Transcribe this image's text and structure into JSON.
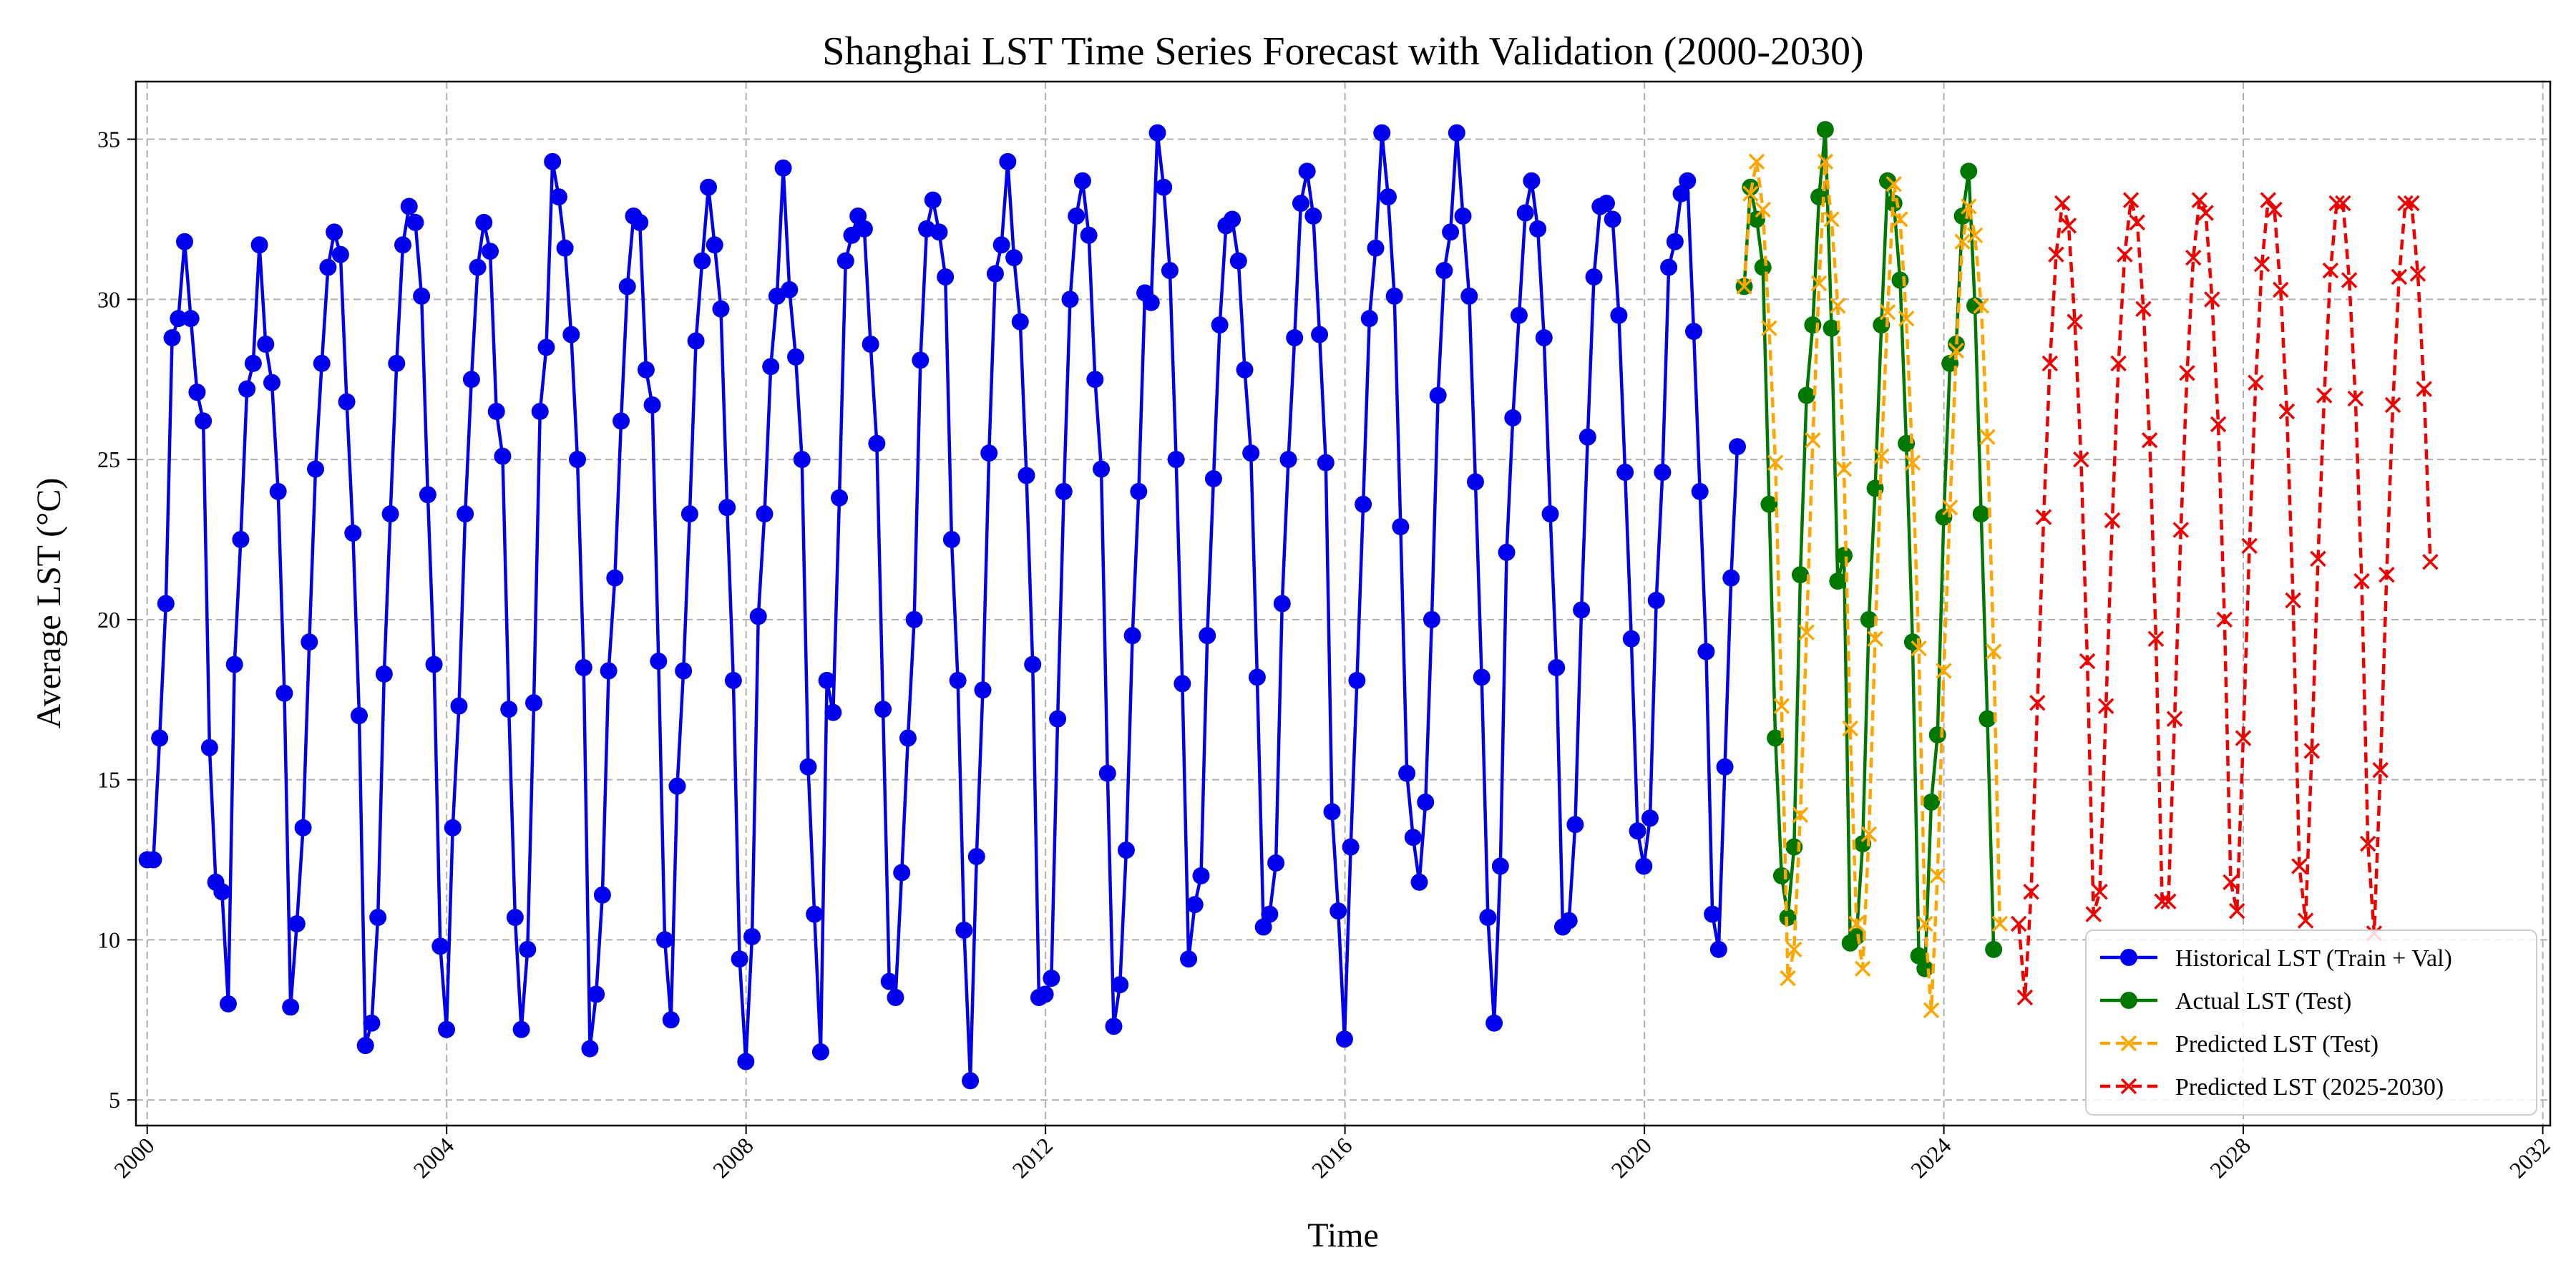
{
  "chart_data": {
    "type": "line",
    "title": "Shanghai LST Time Series Forecast with Validation (2000-2030)",
    "xlabel": "Time",
    "ylabel": "Average LST (°C)",
    "xlim": [
      1999.85,
      2032.1
    ],
    "ylim": [
      4.2,
      36.8
    ],
    "x_ticks": [
      2000,
      2004,
      2008,
      2012,
      2016,
      2020,
      2024,
      2028,
      2032
    ],
    "x_tick_labels": [
      "2000",
      "2004",
      "2008",
      "2012",
      "2016",
      "2020",
      "2024",
      "2028",
      "2032"
    ],
    "y_ticks": [
      5,
      10,
      15,
      20,
      25,
      30,
      35
    ],
    "y_tick_labels": [
      "5",
      "10",
      "15",
      "20",
      "25",
      "30",
      "35"
    ],
    "grid": true,
    "legend_position": "lower-right",
    "series": [
      {
        "name": "Historical LST (Train + Val)",
        "color": "#0000ee",
        "style": "solid-circle",
        "x_start": 2000.0,
        "x_step": 0.0833,
        "values": [
          12.5,
          12.5,
          16.3,
          20.5,
          28.8,
          29.4,
          31.8,
          29.4,
          27.1,
          26.2,
          16.0,
          11.8,
          11.5,
          8.0,
          18.6,
          22.5,
          27.2,
          28.0,
          31.7,
          28.6,
          27.4,
          24.0,
          17.7,
          7.9,
          10.5,
          13.5,
          19.3,
          24.7,
          28.0,
          31.0,
          32.1,
          31.4,
          26.8,
          22.7,
          17.0,
          6.7,
          7.4,
          10.7,
          18.3,
          23.3,
          28.0,
          31.7,
          32.9,
          32.4,
          30.1,
          23.9,
          18.6,
          9.8,
          7.2,
          13.5,
          17.3,
          23.3,
          27.5,
          31.0,
          32.4,
          31.5,
          26.5,
          25.1,
          17.2,
          10.7,
          7.2,
          9.7,
          17.4,
          26.5,
          28.5,
          34.3,
          33.2,
          31.6,
          28.9,
          25.0,
          18.5,
          6.6,
          8.3,
          11.4,
          18.4,
          21.3,
          26.2,
          30.4,
          32.6,
          32.4,
          27.8,
          26.7,
          18.7,
          10.0,
          7.5,
          14.8,
          18.4,
          23.3,
          28.7,
          31.2,
          33.5,
          31.7,
          29.7,
          23.5,
          18.1,
          9.4,
          6.2,
          10.1,
          20.1,
          23.3,
          27.9,
          30.1,
          34.1,
          30.3,
          28.2,
          25.0,
          15.4,
          10.8,
          6.5,
          18.1,
          17.1,
          23.8,
          31.2,
          32.0,
          32.6,
          32.2,
          28.6,
          25.5,
          17.2,
          8.7,
          8.2,
          12.1,
          16.3,
          20.0,
          28.1,
          32.2,
          33.1,
          32.1,
          30.7,
          22.5,
          18.1,
          10.3,
          5.6,
          12.6,
          17.8,
          25.2,
          30.8,
          31.7,
          34.3,
          31.3,
          29.3,
          24.5,
          18.6,
          8.2,
          8.3,
          8.8,
          16.9,
          24.0,
          30.0,
          32.6,
          33.7,
          32.0,
          27.5,
          24.7,
          15.2,
          7.3,
          8.6,
          12.8,
          19.5,
          24.0,
          30.2,
          29.9,
          35.2,
          33.5,
          30.9,
          25.0,
          18.0,
          9.4,
          11.1,
          12.0,
          19.5,
          24.4,
          29.2,
          32.3,
          32.5,
          31.2,
          27.8,
          25.2,
          18.2,
          10.4,
          10.8,
          12.4,
          20.5,
          25.0,
          28.8,
          33.0,
          34.0,
          32.6,
          28.9,
          24.9,
          14.0,
          10.9,
          6.9,
          12.9,
          18.1,
          23.6,
          29.4,
          31.6,
          35.2,
          33.2,
          30.1,
          22.9,
          15.2,
          13.2,
          11.8,
          14.3,
          20.0,
          27.0,
          30.9,
          32.1,
          35.2,
          32.6,
          30.1,
          24.3,
          18.2,
          10.7,
          7.4,
          12.3,
          22.1,
          26.3,
          29.5,
          32.7,
          33.7,
          32.2,
          28.8,
          23.3,
          18.5,
          10.4,
          10.6,
          13.6,
          20.3,
          25.7,
          30.7,
          32.9,
          33.0,
          32.5,
          29.5,
          24.6,
          19.4,
          13.4,
          12.3,
          13.8,
          20.6,
          24.6,
          31.0,
          31.8,
          33.3,
          33.7,
          29.0,
          24.0,
          19.0,
          10.8,
          9.7,
          15.4,
          21.3,
          25.4
        ]
      },
      {
        "name": "Actual LST (Test)",
        "color": "#007700",
        "style": "solid-circle",
        "x_start": 2021.333,
        "x_step": 0.0833,
        "values": [
          30.4,
          33.5,
          32.5,
          31.0,
          23.6,
          16.3,
          12.0,
          10.7,
          12.9,
          21.4,
          27.0,
          29.2,
          33.2,
          35.3,
          29.1,
          21.2,
          22.0,
          9.9,
          10.1,
          13.0,
          20.0,
          24.1,
          29.2,
          33.7,
          33.0,
          30.6,
          25.5,
          19.3,
          9.5,
          9.1,
          14.3,
          16.4,
          23.2,
          28.0,
          28.6,
          32.6,
          34.0,
          29.8,
          23.3,
          16.9,
          9.7
        ]
      },
      {
        "name": "Predicted LST (Test)",
        "color": "#ffa500",
        "style": "dashed-x",
        "x_start": 2021.333,
        "x_step": 0.0833,
        "values": [
          30.4,
          33.3,
          34.3,
          32.8,
          29.1,
          24.9,
          17.3,
          8.8,
          9.7,
          13.9,
          19.6,
          25.6,
          30.5,
          34.3,
          32.5,
          29.8,
          24.7,
          16.6,
          10.5,
          9.1,
          13.3,
          19.4,
          25.1,
          29.6,
          33.6,
          32.5,
          29.4,
          24.9,
          19.1,
          10.5,
          7.8,
          12.0,
          18.4,
          23.5,
          28.4,
          31.8,
          32.9,
          32.0,
          29.8,
          25.7,
          19.0,
          10.5
        ]
      },
      {
        "name": "Predicted LST (2025-2030)",
        "color": "#ee0000",
        "style": "dashed-x",
        "x_start": 2025.0,
        "x_step": 0.0833,
        "values": [
          10.5,
          8.2,
          11.5,
          17.4,
          23.2,
          28.0,
          31.4,
          33.0,
          32.3,
          29.3,
          25.0,
          18.7,
          10.8,
          11.5,
          17.3,
          23.1,
          28.0,
          31.4,
          33.1,
          32.4,
          29.7,
          25.6,
          19.4,
          11.2,
          11.2,
          16.9,
          22.8,
          27.7,
          31.3,
          33.1,
          32.7,
          30.0,
          26.1,
          20.0,
          11.8,
          10.9,
          16.3,
          22.3,
          27.4,
          31.1,
          33.1,
          32.8,
          30.3,
          26.5,
          20.6,
          12.3,
          10.6,
          15.9,
          21.9,
          27.0,
          30.9,
          33.0,
          33.0,
          30.6,
          26.9,
          21.2,
          13.0,
          10.2,
          15.3,
          21.4,
          26.7,
          30.7,
          33.0,
          33.0,
          30.8,
          27.2,
          21.8
        ]
      }
    ]
  }
}
